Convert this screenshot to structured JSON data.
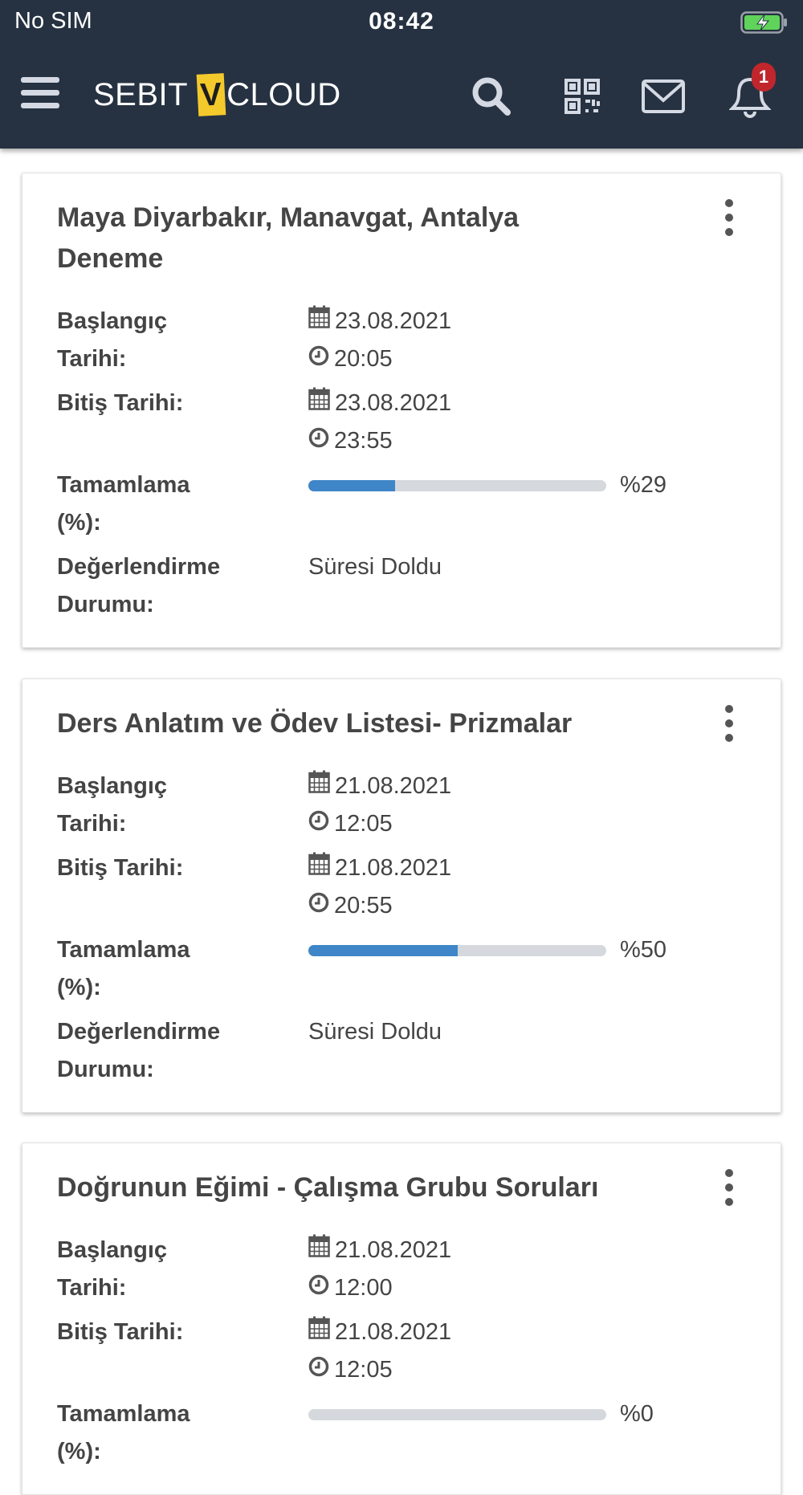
{
  "status_bar": {
    "carrier": "No SIM",
    "time": "08:42",
    "battery_color": "#5fd35a"
  },
  "header": {
    "logo_left": "SEBIT",
    "logo_v": "V",
    "logo_right": "CLOUD",
    "icons": [
      "menu-icon",
      "search-icon",
      "qr-code-icon",
      "mail-icon",
      "bell-icon"
    ],
    "notification_count": "1",
    "background": "#263241",
    "logo_accent": "#f4c92c"
  },
  "labels": {
    "start_line1": "Başlangıç",
    "start_line2": "Tarihi:",
    "end": "Bitiş Tarihi:",
    "completion_line1": "Tamamlama",
    "completion_line2": "(%):",
    "eval_line1": "Değerlendirme",
    "eval_line2": "Durumu:"
  },
  "cards": [
    {
      "title": "Maya Diyarbakır, Manavgat, Antalya Deneme",
      "start_date": "23.08.2021",
      "start_time": "20:05",
      "end_date": "23.08.2021",
      "end_time": "23:55",
      "completion": 29,
      "completion_label": "%29",
      "status": "Süresi Doldu"
    },
    {
      "title": "Ders Anlatım ve Ödev Listesi- Prizmalar",
      "start_date": "21.08.2021",
      "start_time": "12:05",
      "end_date": "21.08.2021",
      "end_time": "20:55",
      "completion": 50,
      "completion_label": "%50",
      "status": "Süresi Doldu"
    },
    {
      "title": "Doğrunun Eğimi - Çalışma Grubu Soruları",
      "start_date": "21.08.2021",
      "start_time": "12:00",
      "end_date": "21.08.2021",
      "end_time": "12:05",
      "completion": 0,
      "completion_label": "%0"
    }
  ],
  "colors": {
    "progress_fill": "#3f86c8",
    "progress_track": "#d5d9de"
  }
}
